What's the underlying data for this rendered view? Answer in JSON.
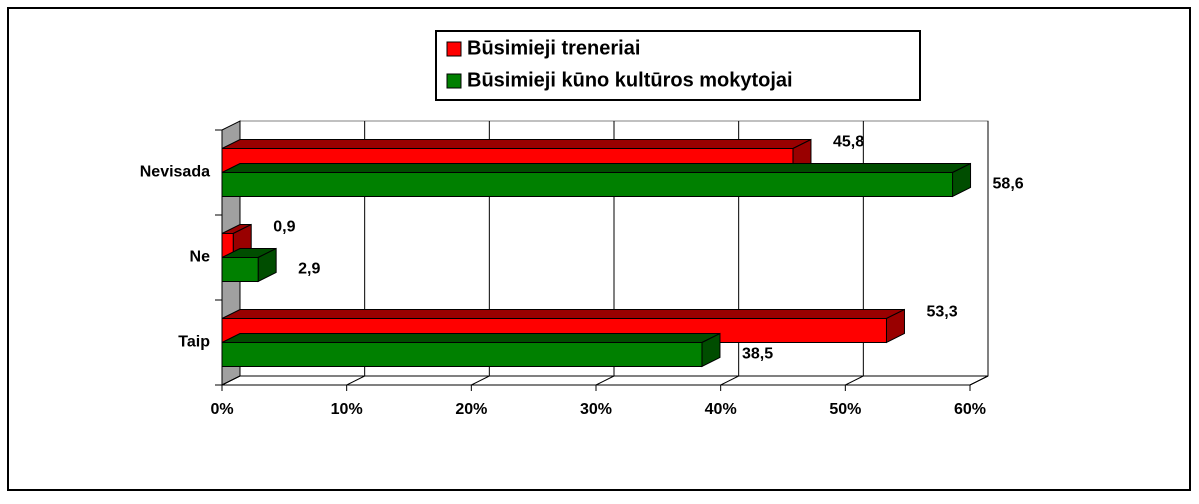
{
  "chart_data": {
    "type": "bar3d",
    "categories": [
      "Nevisada",
      "Ne",
      "Taip"
    ],
    "series": [
      {
        "name": "Būsimieji treneriai",
        "color": "#ff0000",
        "side_color": "#990000",
        "values": [
          45.8,
          0.9,
          53.3
        ],
        "value_labels": [
          "45,8",
          "0,9",
          "53,3"
        ]
      },
      {
        "name": "Būsimieji kūno kultūros mokytojai",
        "color": "#008000",
        "side_color": "#004d00",
        "values": [
          58.6,
          2.9,
          38.5
        ],
        "value_labels": [
          "58,6",
          "2,9",
          "38,5"
        ]
      }
    ],
    "xlim": [
      0,
      60
    ],
    "xticks": [
      {
        "value": 0,
        "label": "0%"
      },
      {
        "value": 10,
        "label": "10%"
      },
      {
        "value": 20,
        "label": "20%"
      },
      {
        "value": 30,
        "label": "30%"
      },
      {
        "value": 40,
        "label": "40%"
      },
      {
        "value": 50,
        "label": "50%"
      },
      {
        "value": 60,
        "label": "60%"
      }
    ],
    "grid": true
  }
}
